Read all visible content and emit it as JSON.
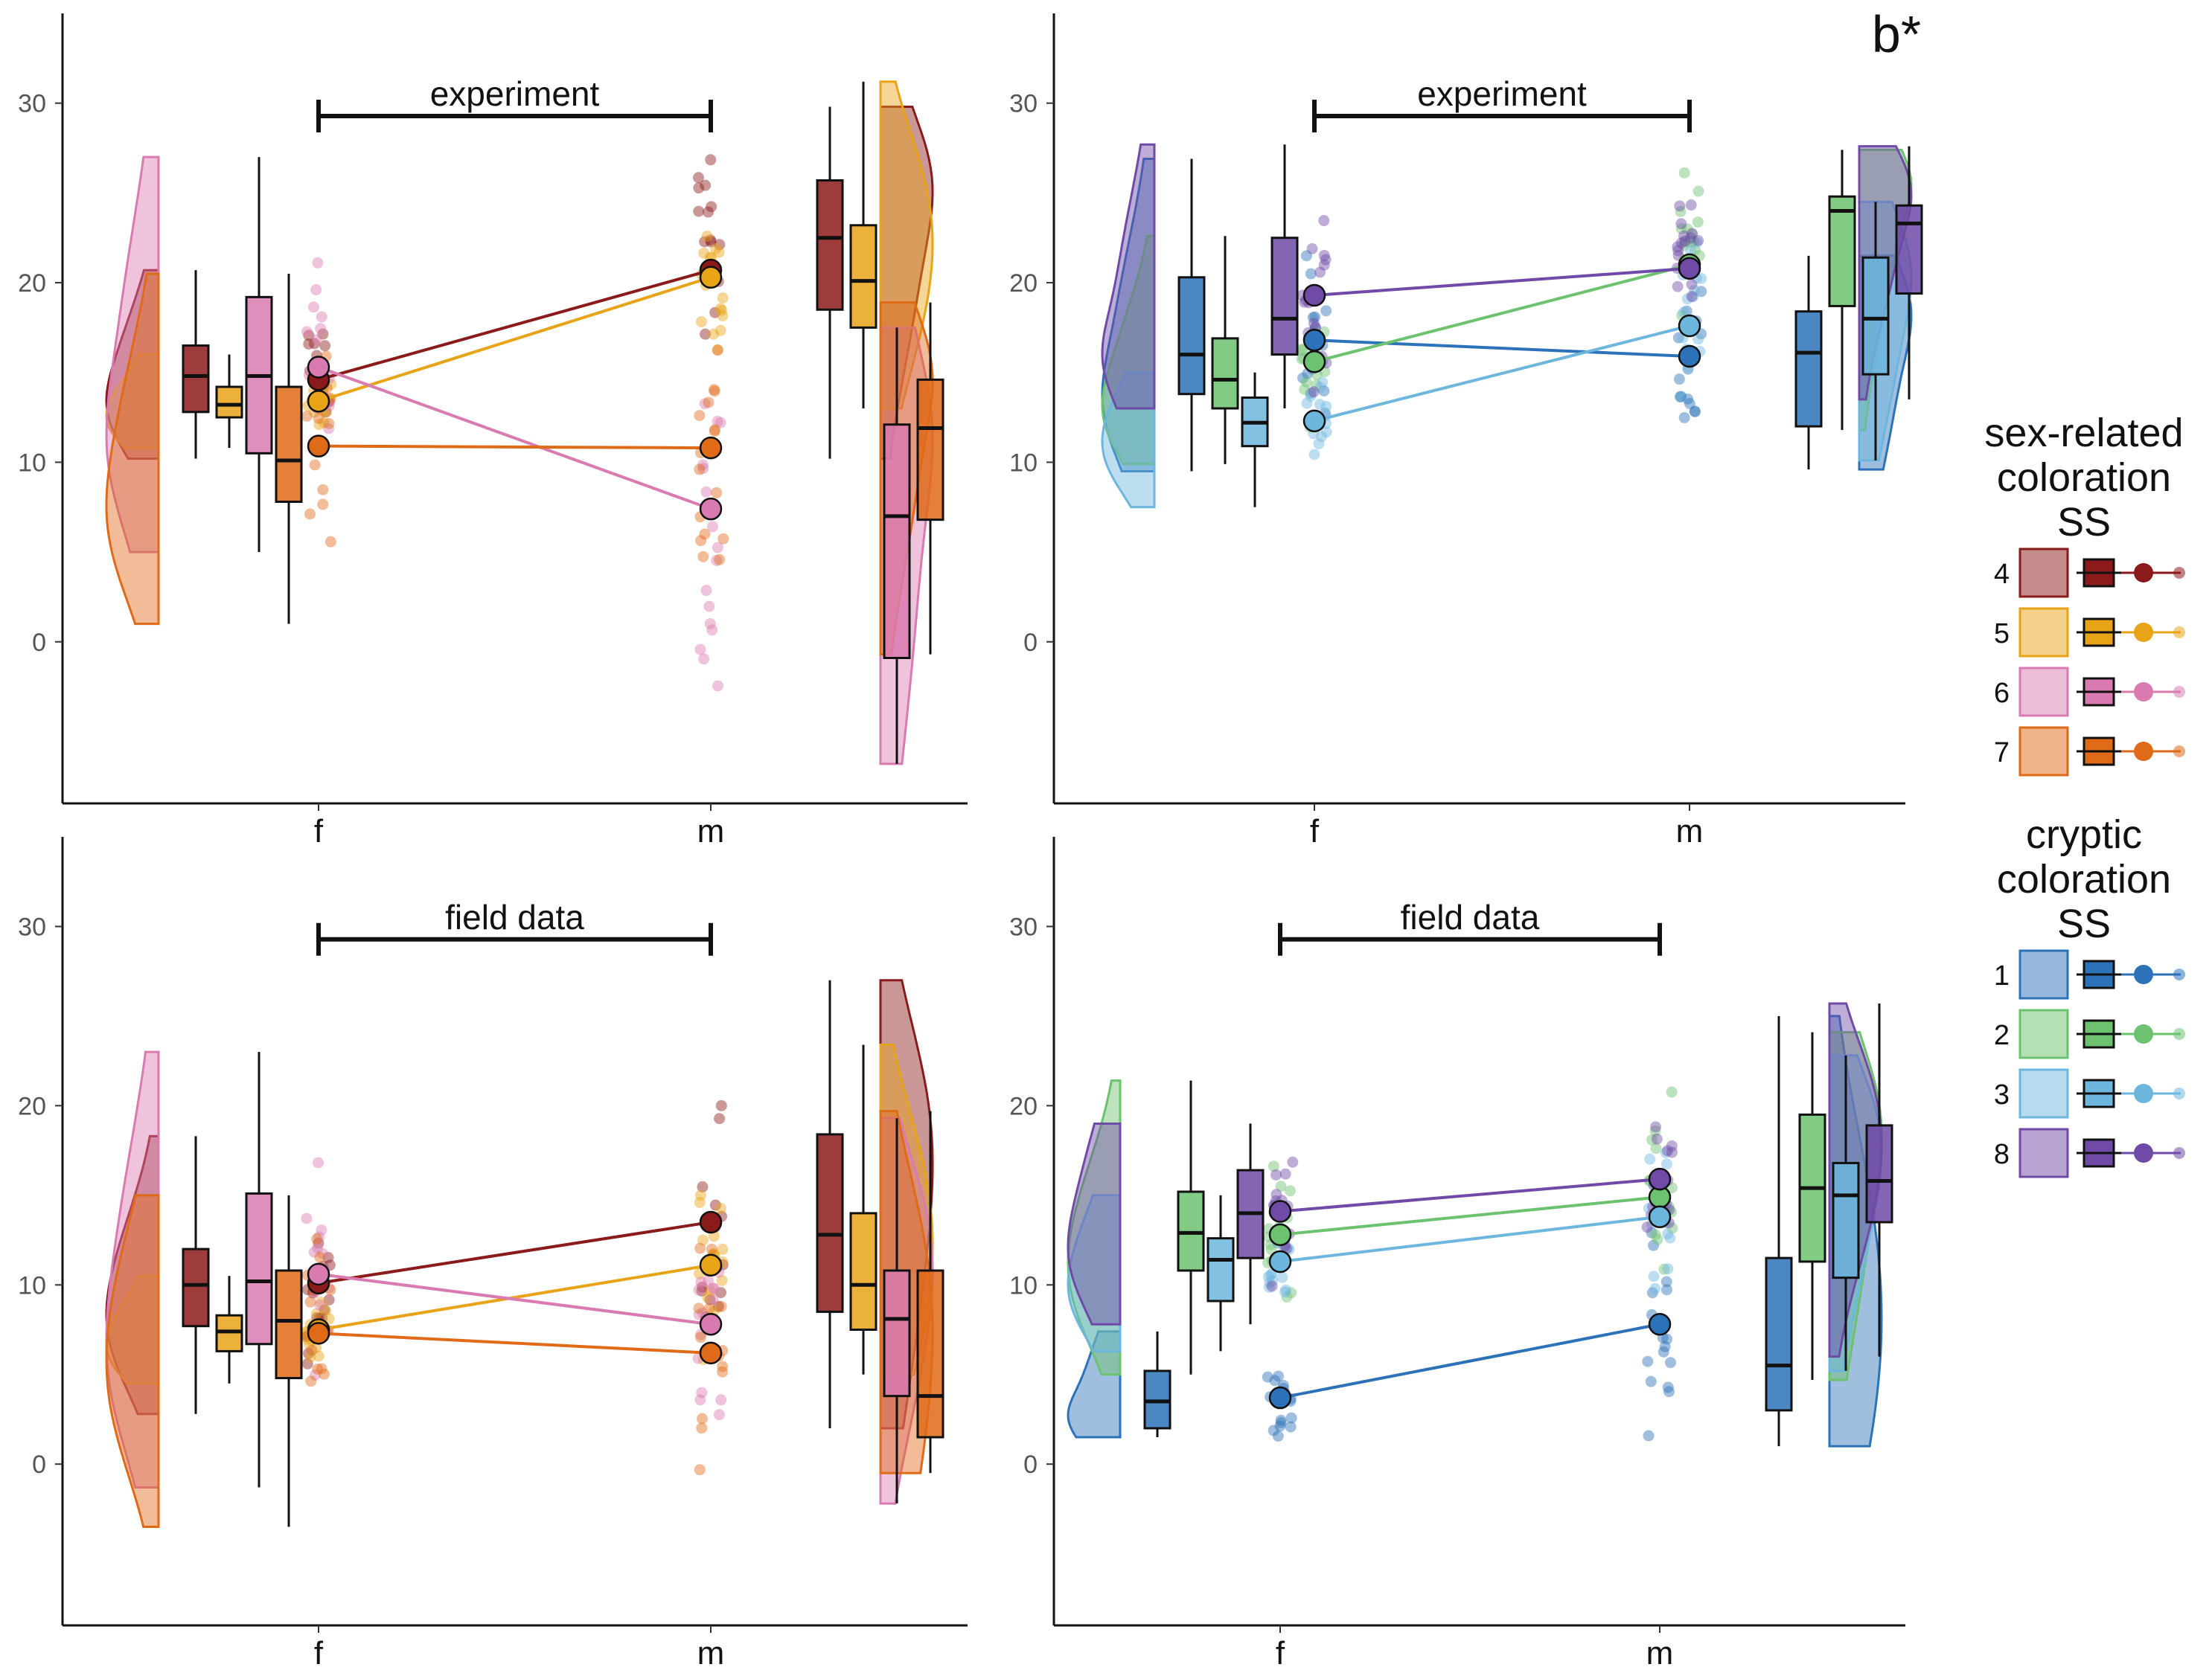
{
  "figure_label": "b*",
  "x_categories": [
    "f",
    "m"
  ],
  "y_ticks": [
    0,
    10,
    20,
    30
  ],
  "legends": [
    {
      "title_lines": [
        "sex-related",
        "coloration",
        "SS"
      ],
      "entries": [
        {
          "key": "4",
          "color": "#8b1a1a"
        },
        {
          "key": "5",
          "color": "#e8a317"
        },
        {
          "key": "6",
          "color": "#d97bb0"
        },
        {
          "key": "7",
          "color": "#df6a18"
        }
      ]
    },
    {
      "title_lines": [
        "cryptic",
        "coloration",
        "SS"
      ],
      "entries": [
        {
          "key": "1",
          "color": "#2c72b8"
        },
        {
          "key": "2",
          "color": "#6cc26e"
        },
        {
          "key": "3",
          "color": "#6db6de"
        },
        {
          "key": "8",
          "color": "#6f4aa6"
        }
      ]
    }
  ],
  "chart_data": [
    {
      "type": "raincloud",
      "panel": "top-left",
      "dataset": "experiment",
      "group": "sex-related coloration",
      "ylim": [
        -9,
        35
      ],
      "series": [
        {
          "name": "4",
          "color": "#8b1a1a",
          "mean_f": 14.6,
          "mean_m": 20.7,
          "box_f": {
            "min": 10.2,
            "q1": 12.8,
            "median": 14.8,
            "q3": 16.5,
            "max": 20.7
          },
          "box_m": {
            "min": 10.2,
            "q1": 18.5,
            "median": 22.5,
            "q3": 25.7,
            "max": 29.8
          }
        },
        {
          "name": "5",
          "color": "#e8a317",
          "mean_f": 13.4,
          "mean_m": 20.3,
          "box_f": {
            "min": 10.8,
            "q1": 12.5,
            "median": 13.2,
            "q3": 14.2,
            "max": 16.0
          },
          "box_m": {
            "min": 13.0,
            "q1": 17.5,
            "median": 20.1,
            "q3": 23.2,
            "max": 31.2
          }
        },
        {
          "name": "6",
          "color": "#d97bb0",
          "mean_f": 15.3,
          "mean_m": 7.4,
          "box_f": {
            "min": 5.0,
            "q1": 10.5,
            "median": 14.8,
            "q3": 19.2,
            "max": 27.0
          },
          "box_m": {
            "min": -6.8,
            "q1": -0.9,
            "median": 7.0,
            "q3": 12.1,
            "max": 17.5
          }
        },
        {
          "name": "7",
          "color": "#df6a18",
          "mean_f": 10.9,
          "mean_m": 10.8,
          "box_f": {
            "min": 1.0,
            "q1": 7.8,
            "median": 10.1,
            "q3": 14.2,
            "max": 20.5
          },
          "box_m": {
            "min": -0.7,
            "q1": 6.8,
            "median": 11.9,
            "q3": 14.6,
            "max": 18.9
          }
        }
      ]
    },
    {
      "type": "raincloud",
      "panel": "top-right",
      "dataset": "experiment",
      "group": "cryptic coloration",
      "ylim": [
        -9,
        35
      ],
      "series": [
        {
          "name": "1",
          "color": "#2c72b8",
          "mean_f": 16.8,
          "mean_m": 15.9,
          "box_f": {
            "min": 9.5,
            "q1": 13.8,
            "median": 16.0,
            "q3": 20.3,
            "max": 26.9
          },
          "box_m": {
            "min": 9.6,
            "q1": 12.0,
            "median": 16.1,
            "q3": 18.4,
            "max": 21.5
          }
        },
        {
          "name": "2",
          "color": "#6cc26e",
          "mean_f": 15.6,
          "mean_m": 21.0,
          "box_f": {
            "min": 9.9,
            "q1": 13.0,
            "median": 14.6,
            "q3": 16.9,
            "max": 22.6
          },
          "box_m": {
            "min": 11.8,
            "q1": 18.7,
            "median": 24.0,
            "q3": 24.8,
            "max": 27.4
          }
        },
        {
          "name": "3",
          "color": "#6db6de",
          "mean_f": 12.3,
          "mean_m": 17.6,
          "box_f": {
            "min": 7.5,
            "q1": 10.9,
            "median": 12.2,
            "q3": 13.6,
            "max": 15.0
          },
          "box_m": {
            "min": 10.1,
            "q1": 14.9,
            "median": 18.0,
            "q3": 21.4,
            "max": 24.5
          }
        },
        {
          "name": "8",
          "color": "#6f4aa6",
          "mean_f": 19.3,
          "mean_m": 20.8,
          "box_f": {
            "min": 13.0,
            "q1": 16.0,
            "median": 18.0,
            "q3": 22.5,
            "max": 27.7
          },
          "box_m": {
            "min": 13.5,
            "q1": 19.4,
            "median": 23.3,
            "q3": 24.3,
            "max": 27.6
          }
        }
      ]
    },
    {
      "type": "raincloud",
      "panel": "bottom-left",
      "dataset": "field data",
      "group": "sex-related coloration",
      "ylim": [
        -9,
        35
      ],
      "series": [
        {
          "name": "4",
          "color": "#8b1a1a",
          "mean_f": 10.1,
          "mean_m": 13.5,
          "box_f": {
            "min": 2.8,
            "q1": 7.7,
            "median": 10.0,
            "q3": 12.0,
            "max": 18.3
          },
          "box_m": {
            "min": 2.0,
            "q1": 8.5,
            "median": 12.8,
            "q3": 18.4,
            "max": 27.0
          }
        },
        {
          "name": "5",
          "color": "#e8a317",
          "mean_f": 7.5,
          "mean_m": 11.1,
          "box_f": {
            "min": 4.5,
            "q1": 6.3,
            "median": 7.4,
            "q3": 8.3,
            "max": 10.5
          },
          "box_m": {
            "min": 5.0,
            "q1": 7.5,
            "median": 10.0,
            "q3": 14.0,
            "max": 23.4
          }
        },
        {
          "name": "6",
          "color": "#d97bb0",
          "mean_f": 10.6,
          "mean_m": 7.8,
          "box_f": {
            "min": -1.3,
            "q1": 6.7,
            "median": 10.2,
            "q3": 15.1,
            "max": 23.0
          },
          "box_m": {
            "min": -2.2,
            "q1": 3.8,
            "median": 8.1,
            "q3": 10.8,
            "max": 19.3
          }
        },
        {
          "name": "7",
          "color": "#df6a18",
          "mean_f": 7.3,
          "mean_m": 6.2,
          "box_f": {
            "min": -3.5,
            "q1": 4.8,
            "median": 8.0,
            "q3": 10.8,
            "max": 15.0
          },
          "box_m": {
            "min": -0.5,
            "q1": 1.5,
            "median": 3.8,
            "q3": 10.8,
            "max": 19.7
          }
        }
      ]
    },
    {
      "type": "raincloud",
      "panel": "bottom-right",
      "dataset": "field data",
      "group": "cryptic coloration",
      "ylim": [
        -9,
        35
      ],
      "series": [
        {
          "name": "1",
          "color": "#2c72b8",
          "mean_f": 3.7,
          "mean_m": 7.8,
          "box_f": {
            "min": 1.5,
            "q1": 2.0,
            "median": 3.5,
            "q3": 5.2,
            "max": 7.4
          },
          "box_m": {
            "min": 1.0,
            "q1": 3.0,
            "median": 5.5,
            "q3": 11.5,
            "max": 25.0
          }
        },
        {
          "name": "2",
          "color": "#6cc26e",
          "mean_f": 12.8,
          "mean_m": 14.9,
          "box_f": {
            "min": 5.0,
            "q1": 10.8,
            "median": 12.9,
            "q3": 15.2,
            "max": 21.4
          },
          "box_m": {
            "min": 4.7,
            "q1": 11.3,
            "median": 15.4,
            "q3": 19.5,
            "max": 24.1
          }
        },
        {
          "name": "3",
          "color": "#6db6de",
          "mean_f": 11.3,
          "mean_m": 13.8,
          "box_f": {
            "min": 6.3,
            "q1": 9.1,
            "median": 11.4,
            "q3": 12.6,
            "max": 15.0
          },
          "box_m": {
            "min": 5.2,
            "q1": 10.4,
            "median": 15.0,
            "q3": 16.8,
            "max": 22.8
          }
        },
        {
          "name": "8",
          "color": "#6f4aa6",
          "mean_f": 14.1,
          "mean_m": 15.9,
          "box_f": {
            "min": 7.8,
            "q1": 11.5,
            "median": 14.0,
            "q3": 16.4,
            "max": 19.0
          },
          "box_m": {
            "min": 6.0,
            "q1": 13.5,
            "median": 15.8,
            "q3": 18.9,
            "max": 25.7
          }
        }
      ]
    }
  ]
}
